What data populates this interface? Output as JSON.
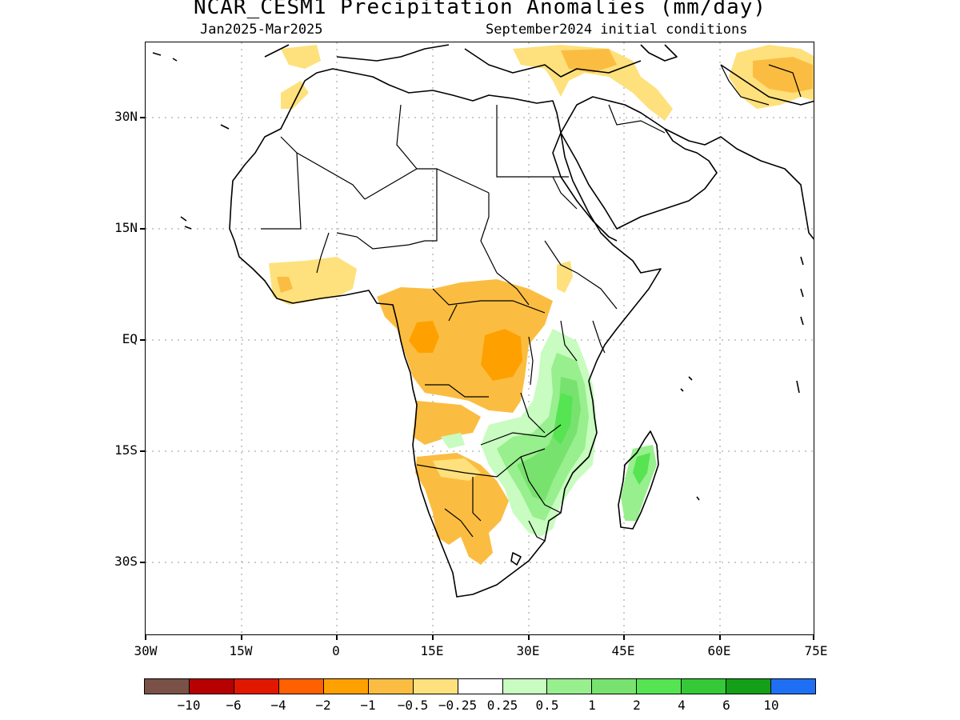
{
  "title": "NCAR_CESM1 Precipitation Anomalies (mm/day)",
  "subtitle_left": "Jan2025-Mar2025",
  "subtitle_right": "September2024 initial conditions",
  "map": {
    "region": "Africa and Arabian Peninsula",
    "lon_range": [
      -30,
      75
    ],
    "lat_range": [
      -40,
      40
    ],
    "gridlines": "dotted",
    "y_ticks": [
      "30N",
      "15N",
      "EQ",
      "15S",
      "30S"
    ],
    "x_ticks": [
      "30W",
      "15W",
      "0",
      "15E",
      "30E",
      "45E",
      "60E",
      "75E"
    ],
    "anomaly_regions": [
      {
        "area": "Central Africa / Congo Basin",
        "category": "-1 to -0.5",
        "color": "#fbbd41"
      },
      {
        "area": "Congo core",
        "category": "-2 to -1",
        "color": "#fea100"
      },
      {
        "area": "Southern Africa (Angola/Namibia/Botswana)",
        "category": "-1 to -0.25",
        "color": "#fbbd41"
      },
      {
        "area": "West African coast",
        "category": "-0.5 to -0.25",
        "color": "#fee17c"
      },
      {
        "area": "East Africa (Kenya/Tanzania/Mozambique)",
        "category": "0.5 to 4",
        "color": "#78e26e"
      },
      {
        "area": "Madagascar",
        "category": "0.5 to 2",
        "color": "#56e452"
      },
      {
        "area": "Iran / Afghanistan",
        "category": "-1 to -0.25",
        "color": "#fbbd41"
      }
    ]
  },
  "colorbar": {
    "colors": [
      "#7a5146",
      "#b70000",
      "#e11700",
      "#ff6000",
      "#fea100",
      "#fbbd41",
      "#fee17c",
      "#ffffff",
      "#c8fcc0",
      "#97ef8d",
      "#78e26e",
      "#56e452",
      "#35c938",
      "#13a018",
      "#1f6ff5"
    ],
    "labels": [
      "-10",
      "-6",
      "-4",
      "-2",
      "-1",
      "-0.5",
      "-0.25",
      "0.25",
      "0.5",
      "1",
      "2",
      "4",
      "6",
      "10"
    ]
  }
}
